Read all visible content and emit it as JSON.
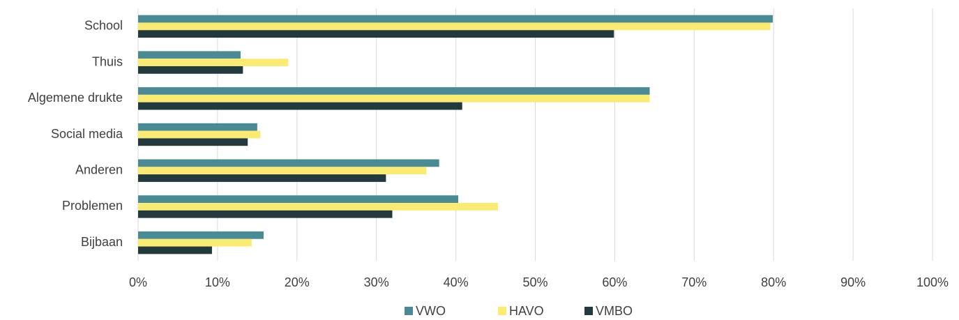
{
  "chart_data": {
    "type": "hbar",
    "categories": [
      "School",
      "Thuis",
      "Algemene drukte",
      "Social media",
      "Anderen",
      "Problemen",
      "Bijbaan"
    ],
    "series": [
      {
        "name": "VWO",
        "color": "#4a8a94",
        "values": [
          79.9,
          12.9,
          64.4,
          15.0,
          37.9,
          40.3,
          15.8
        ]
      },
      {
        "name": "HAVO",
        "color": "#fbeb72",
        "values": [
          79.6,
          18.9,
          64.4,
          15.4,
          36.3,
          45.3,
          14.3
        ]
      },
      {
        "name": "VMBO",
        "color": "#22393e",
        "values": [
          59.9,
          13.2,
          40.8,
          13.8,
          31.2,
          32.0,
          9.3
        ]
      }
    ],
    "xlim": [
      0,
      100
    ],
    "xticks": [
      {
        "value": 0,
        "label": "0%"
      },
      {
        "value": 10,
        "label": "10%"
      },
      {
        "value": 20,
        "label": "20%"
      },
      {
        "value": 30,
        "label": "30%"
      },
      {
        "value": 40,
        "label": "40%"
      },
      {
        "value": 50,
        "label": "50%"
      },
      {
        "value": 60,
        "label": "60%"
      },
      {
        "value": 70,
        "label": "70%"
      },
      {
        "value": 80,
        "label": "80%"
      },
      {
        "value": 90,
        "label": "90%"
      },
      {
        "value": 100,
        "label": "100%"
      }
    ],
    "grid": true,
    "legend": "bottom"
  }
}
